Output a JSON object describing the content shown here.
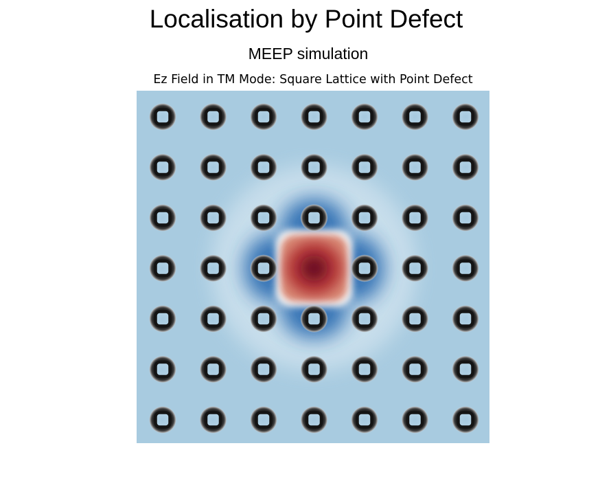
{
  "figure": {
    "title": "Localisation by Point Defect",
    "subtitle": "MEEP simulation",
    "plot_title": "Ez Field in TM Mode: Square Lattice with Point Defect"
  },
  "field_plot": {
    "lattice_rows": 7,
    "lattice_cols": 7,
    "defect_row": 3,
    "defect_col": 3,
    "colors": {
      "background": "#a8cbe0",
      "negative_field": "#2f6eb2",
      "positive_field": "#a3202d",
      "zero_field": "#f4f4f4",
      "rod_dark": "#141414",
      "rod_center": "#a6c9df"
    }
  }
}
